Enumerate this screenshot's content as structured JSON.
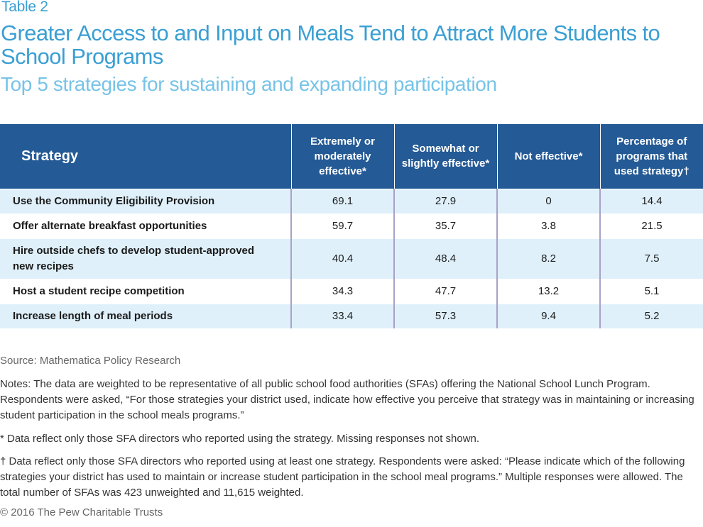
{
  "header": {
    "table_label": "Table 2",
    "title": "Greater Access to and Input on Meals Tend to Attract More Students to School Programs",
    "subtitle": "Top 5 strategies for sustaining and expanding participation"
  },
  "table": {
    "columns": [
      "Strategy",
      "Extremely or moderately effective*",
      "Somewhat or slightly effective*",
      "Not effective*",
      "Percentage of programs that used strategy†"
    ],
    "rows": [
      {
        "strategy": "Use the Community Eligibility Provision",
        "extreme": "69.1",
        "somewhat": "27.9",
        "not": "0",
        "pct": "14.4"
      },
      {
        "strategy": "Offer alternate breakfast opportunities",
        "extreme": "59.7",
        "somewhat": "35.7",
        "not": "3.8",
        "pct": "21.5"
      },
      {
        "strategy": "Hire outside chefs to develop student-approved new recipes",
        "extreme": "40.4",
        "somewhat": "48.4",
        "not": "8.2",
        "pct": "7.5"
      },
      {
        "strategy": "Host a student recipe competition",
        "extreme": "34.3",
        "somewhat": "47.7",
        "not": "13.2",
        "pct": "5.1"
      },
      {
        "strategy": "Increase length of meal periods",
        "extreme": "33.4",
        "somewhat": "57.3",
        "not": "9.4",
        "pct": "5.2"
      }
    ]
  },
  "footer": {
    "source": "Source: Mathematica Policy Research",
    "notes": "Notes: The data are weighted to be representative of all public school food authorities (SFAs) offering the National School Lunch Program. Respondents were asked, “For those strategies your district used, indicate how effective you perceive that strategy was in maintaining or increasing student participation in the school meals programs.”",
    "star_note": "* Data reflect only those SFA directors who reported using the strategy. Missing responses not shown.",
    "dagger_note": "† Data reflect only those SFA directors who reported using at least one strategy. Respondents were asked: “Please indicate which of the following strategies your district has used to maintain or increase student participation in the school meal programs.” Multiple responses were allowed. The total number of SFAs was 423 unweighted and 11,615 weighted.",
    "copyright": "© 2016 The Pew Charitable Trusts"
  }
}
